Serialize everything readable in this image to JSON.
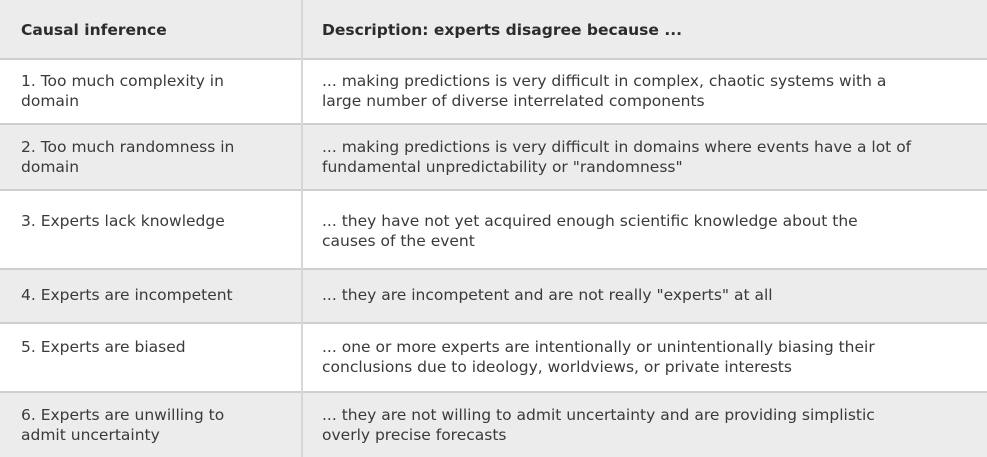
{
  "table": {
    "headers": {
      "col1": "Causal inference",
      "col2": "Description: experts disagree because ..."
    },
    "rows": [
      {
        "inference_lines": [
          "1. Too much complexity in",
          "domain"
        ],
        "description_lines": [
          "... making predictions is very difficult in complex, chaotic systems with a",
          "large number of diverse interrelated components"
        ]
      },
      {
        "inference_lines": [
          "2. Too much randomness in",
          "domain"
        ],
        "description_lines": [
          "... making predictions is very difficult in domains where events have a lot of",
          "fundamental unpredictability or \"randomness\""
        ]
      },
      {
        "inference_lines": [
          "3. Experts lack knowledge"
        ],
        "description_lines": [
          "... they have not yet acquired enough scientific knowledge about the",
          "causes of the event"
        ]
      },
      {
        "inference_lines": [
          "4. Experts are incompetent"
        ],
        "description_lines": [
          "... they are incompetent and are not really \"experts\" at all"
        ]
      },
      {
        "inference_lines": [
          "5. Experts are biased"
        ],
        "description_lines": [
          "... one or more experts are intentionally or unintentionally biasing their",
          "conclusions due to ideology, worldviews, or private interests"
        ]
      },
      {
        "inference_lines": [
          "6. Experts are unwilling to",
          "admit uncertainty"
        ],
        "description_lines": [
          "... they are not willing to admit uncertainty and are providing simplistic",
          "overly precise forecasts"
        ]
      }
    ]
  }
}
